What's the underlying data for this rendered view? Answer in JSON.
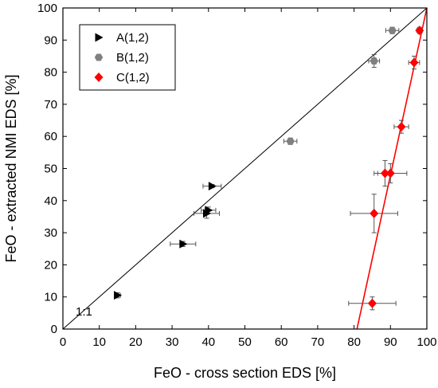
{
  "chart_data": {
    "type": "scatter",
    "xlabel": "FeO - cross section EDS [%]",
    "ylabel": "FeO - extracted NMI EDS [%]",
    "xlim": [
      0,
      100
    ],
    "ylim": [
      0,
      100
    ],
    "xticks": [
      0,
      10,
      20,
      30,
      40,
      50,
      60,
      70,
      80,
      90,
      100
    ],
    "yticks": [
      0,
      10,
      20,
      30,
      40,
      50,
      60,
      70,
      80,
      90,
      100
    ],
    "grid": false,
    "legend_position": "top-left",
    "annotation": "1:1",
    "series": [
      {
        "name": "A(1,2)",
        "marker": "right-triangle",
        "color": "#000000",
        "points": [
          {
            "x": 15,
            "y": 10.5,
            "xerr": 0.8,
            "yerr": 0.8
          },
          {
            "x": 33,
            "y": 26.5,
            "xerr": 3.5,
            "yerr": 0.8
          },
          {
            "x": 39.5,
            "y": 36,
            "xerr": 3.5,
            "yerr": 1.5
          },
          {
            "x": 40,
            "y": 37,
            "xerr": 2.0,
            "yerr": 1.0
          },
          {
            "x": 41,
            "y": 44.5,
            "xerr": 2.5,
            "yerr": 0.5
          }
        ]
      },
      {
        "name": "B(1,2)",
        "marker": "hexagon",
        "color": "#808080",
        "points": [
          {
            "x": 62.5,
            "y": 58.5,
            "xerr": 1.8,
            "yerr": 1.0
          },
          {
            "x": 85.5,
            "y": 83.5,
            "xerr": 1.5,
            "yerr": 2.0
          },
          {
            "x": 90.5,
            "y": 93,
            "xerr": 1.8,
            "yerr": 1.0
          }
        ]
      },
      {
        "name": "C(1,2)",
        "marker": "diamond",
        "color": "#ff0000",
        "points": [
          {
            "x": 85,
            "y": 8,
            "xerr": 6.5,
            "yerr": 2.0
          },
          {
            "x": 85.5,
            "y": 36,
            "xerr": 6.5,
            "yerr": 6.0
          },
          {
            "x": 88.5,
            "y": 48.5,
            "xerr": 2.0,
            "yerr": 4.0
          },
          {
            "x": 90,
            "y": 48.5,
            "xerr": 4.5,
            "yerr": 3.0
          },
          {
            "x": 93,
            "y": 63,
            "xerr": 2.0,
            "yerr": 2.0
          },
          {
            "x": 96.5,
            "y": 83,
            "xerr": 1.5,
            "yerr": 2.0
          },
          {
            "x": 98,
            "y": 93,
            "xerr": 0.8,
            "yerr": 1.0
          }
        ]
      }
    ],
    "lines": [
      {
        "kind": "identity",
        "color": "#000000",
        "from": [
          0,
          0
        ],
        "to": [
          100,
          100
        ]
      },
      {
        "kind": "fit",
        "color": "#ff0000",
        "from": [
          80.8,
          0
        ],
        "to": [
          100,
          100
        ]
      }
    ]
  }
}
